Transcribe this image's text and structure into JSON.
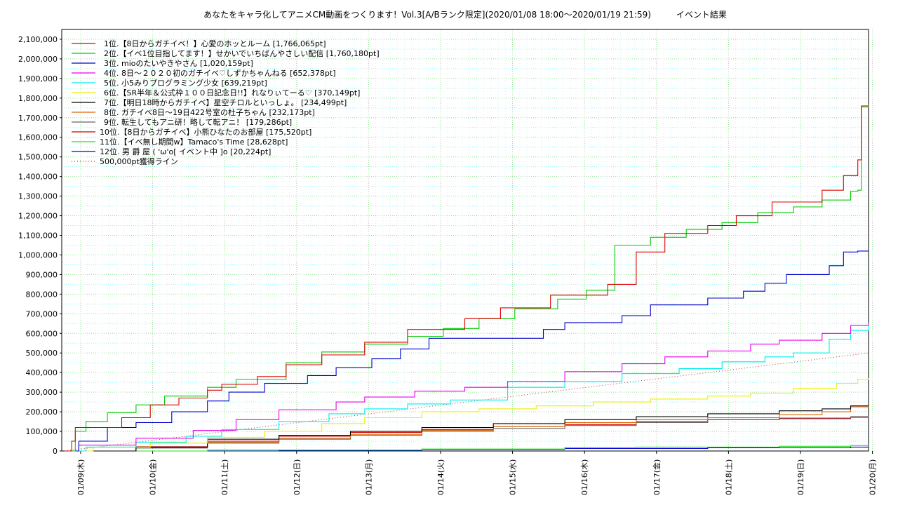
{
  "chart_data": {
    "type": "line",
    "title": "あなたをキャラ化してアニメCM動画をつくります！Vol.3[A/Bランク限定](2020/01/08 18:00～2020/01/19 21:59)　　　イベント結果",
    "ylim": [
      0,
      2150000
    ],
    "xlim_days": [
      0.0,
      11.25
    ],
    "yticks": [
      0,
      100000,
      200000,
      300000,
      400000,
      500000,
      600000,
      700000,
      800000,
      900000,
      1000000,
      1100000,
      1200000,
      1300000,
      1400000,
      1500000,
      1600000,
      1700000,
      1800000,
      1900000,
      2000000,
      2100000
    ],
    "ytick_labels": [
      "0",
      "100,000",
      "200,000",
      "300,000",
      "400,000",
      "500,000",
      "600,000",
      "700,000",
      "800,000",
      "900,000",
      "1,000,000",
      "1,100,000",
      "1,200,000",
      "1,300,000",
      "1,400,000",
      "1,500,000",
      "1,600,000",
      "1,700,000",
      "1,800,000",
      "1,900,000",
      "2,000,000",
      "2,100,000"
    ],
    "xtick_labels": [
      "01/09(木)",
      "01/10(金)",
      "01/11(土)",
      "01/12(日)",
      "01/13(月)",
      "01/14(火)",
      "01/15(水)",
      "01/16(木)",
      "01/17(金)",
      "01/18(土)",
      "01/19(日)",
      "01/20(月)"
    ],
    "grid": true,
    "legend_position": "top-left",
    "series": [
      {
        "name": "1位.【8日からガチイベ！】心愛のホッとルーム [1,766,065pt]",
        "color": "#dd0000",
        "x": [
          0,
          0.1,
          0.15,
          0.8,
          1.2,
          1.6,
          2.0,
          2.2,
          2.7,
          3.1,
          3.6,
          4.2,
          4.8,
          5.6,
          6.1,
          6.8,
          7.6,
          8.0,
          8.4,
          9.0,
          9.4,
          9.9,
          10.6,
          10.9,
          11.1,
          11.15,
          11.25
        ],
        "y": [
          0,
          50000,
          120000,
          170000,
          235000,
          270000,
          310000,
          340000,
          380000,
          440000,
          490000,
          555000,
          620000,
          675000,
          730000,
          795000,
          850000,
          1015000,
          1110000,
          1150000,
          1200000,
          1270000,
          1330000,
          1405000,
          1485000,
          1760000,
          1766065
        ]
      },
      {
        "name": "2位.【イベ1位目指してます！】せかいでいちばんやさしい配信 [1,760,180pt]",
        "color": "#00cc00",
        "x": [
          0,
          0.15,
          0.3,
          0.6,
          1.0,
          1.4,
          2.0,
          2.4,
          3.1,
          3.6,
          4.2,
          4.8,
          5.3,
          5.8,
          6.3,
          6.9,
          7.3,
          7.7,
          8.2,
          8.7,
          9.2,
          9.7,
          10.2,
          10.6,
          11.0,
          11.1,
          11.15,
          11.25
        ],
        "y": [
          0,
          100000,
          150000,
          195000,
          235000,
          280000,
          325000,
          365000,
          450000,
          505000,
          545000,
          585000,
          625000,
          675000,
          725000,
          775000,
          820000,
          1050000,
          1090000,
          1130000,
          1165000,
          1215000,
          1245000,
          1280000,
          1325000,
          1330000,
          1755000,
          1760180
        ]
      },
      {
        "name": "3位. mioのたいやきやさん [1,020,159pt]",
        "color": "#0000cc",
        "x": [
          0,
          0.2,
          0.6,
          1.0,
          1.5,
          2.0,
          2.3,
          2.8,
          3.4,
          3.8,
          4.3,
          4.7,
          5.1,
          5.8,
          6.3,
          6.7,
          7.0,
          7.5,
          7.8,
          8.2,
          8.6,
          9.0,
          9.5,
          9.8,
          10.1,
          10.7,
          10.9,
          11.1,
          11.25
        ],
        "y": [
          0,
          50000,
          120000,
          145000,
          200000,
          255000,
          300000,
          345000,
          385000,
          425000,
          470000,
          520000,
          575000,
          575000,
          575000,
          620000,
          655000,
          655000,
          690000,
          745000,
          745000,
          780000,
          815000,
          855000,
          900000,
          945000,
          1015000,
          1020000,
          1020159
        ]
      },
      {
        "name": "4位. 8日〜２０２０初のガチイベ♡しずかちゃんねる [652,378pt]",
        "color": "#ee00ee",
        "x": [
          0,
          0.2,
          1.0,
          1.8,
          2.4,
          3.0,
          3.8,
          4.2,
          4.9,
          5.6,
          6.2,
          7.0,
          7.8,
          8.4,
          9.0,
          9.6,
          10.0,
          10.6,
          11.0,
          11.25
        ],
        "y": [
          0,
          30000,
          65000,
          105000,
          160000,
          210000,
          250000,
          275000,
          305000,
          325000,
          355000,
          405000,
          445000,
          480000,
          510000,
          545000,
          565000,
          600000,
          640000,
          652378
        ]
      },
      {
        "name": "5位. 小5みりプログラミング少女 [639,219pt]",
        "color": "#00eeee",
        "x": [
          0,
          0.3,
          1.0,
          1.7,
          2.2,
          3.0,
          3.7,
          4.2,
          4.8,
          5.4,
          6.2,
          7.0,
          7.8,
          8.6,
          9.2,
          9.8,
          10.2,
          10.7,
          11.0,
          11.25
        ],
        "y": [
          0,
          20000,
          45000,
          75000,
          110000,
          150000,
          190000,
          215000,
          240000,
          260000,
          325000,
          355000,
          395000,
          420000,
          455000,
          480000,
          500000,
          570000,
          615000,
          639219
        ]
      },
      {
        "name": "6位.【SR半年＆公式枠１００日記念日!!】れなりぃてーる♡ [370,149pt]",
        "color": "#eeee00",
        "x": [
          0,
          0.4,
          1.2,
          2.0,
          2.8,
          3.6,
          4.2,
          5.0,
          5.8,
          6.6,
          7.4,
          8.2,
          9.0,
          9.6,
          10.2,
          10.8,
          11.1,
          11.25
        ],
        "y": [
          0,
          20000,
          40000,
          70000,
          100000,
          140000,
          170000,
          200000,
          215000,
          230000,
          250000,
          265000,
          280000,
          295000,
          320000,
          345000,
          365000,
          370149
        ]
      },
      {
        "name": "7位.【明日18時からガチイベ】星空チロルといっしょ。 [234,499pt]",
        "color": "#000000",
        "x": [
          0,
          1.0,
          2.0,
          3.0,
          4.0,
          5.0,
          6.0,
          7.0,
          8.0,
          9.0,
          10.0,
          10.6,
          11.0,
          11.25
        ],
        "y": [
          0,
          20000,
          60000,
          80000,
          100000,
          120000,
          140000,
          160000,
          175000,
          190000,
          205000,
          215000,
          230000,
          234499
        ]
      },
      {
        "name": "8位. ガチイベ8日〜19日422号室の杜子ちゃん [232,173pt]",
        "color": "#dd6600",
        "x": [
          0,
          1.0,
          2.0,
          3.0,
          4.0,
          5.0,
          6.0,
          7.0,
          8.0,
          9.0,
          10.0,
          10.6,
          11.0,
          11.25
        ],
        "y": [
          0,
          18000,
          45000,
          65000,
          85000,
          105000,
          125000,
          145000,
          160000,
          170000,
          185000,
          200000,
          225000,
          232173
        ]
      },
      {
        "name": "9位. 転生してもアニ研！略して転アニ！ [179,286pt]",
        "color": "#666666",
        "x": [
          0,
          1.0,
          2.0,
          3.0,
          4.0,
          5.0,
          6.0,
          7.0,
          8.0,
          9.0,
          10.0,
          11.0,
          11.25
        ],
        "y": [
          0,
          15000,
          40000,
          60000,
          80000,
          100000,
          115000,
          130000,
          145000,
          160000,
          168000,
          175000,
          179286
        ]
      },
      {
        "name": "10位.【8日からガチイベ】小熊ひなたのお部屋 [175,520pt]",
        "color": "#cc0000",
        "x": [
          0,
          1.0,
          2.0,
          3.0,
          4.0,
          5.0,
          6.0,
          7.0,
          8.0,
          9.0,
          10.0,
          11.0,
          11.25
        ],
        "y": [
          0,
          22000,
          50000,
          75000,
          95000,
          110000,
          125000,
          135000,
          150000,
          160000,
          165000,
          172000,
          175520
        ]
      },
      {
        "name": "11位.【イベ無し期間w】Tamaco's Time [28,628pt]",
        "color": "#22dd22",
        "x": [
          0,
          2.0,
          5.0,
          7.0,
          8.0,
          10.0,
          11.0,
          11.25
        ],
        "y": [
          0,
          5000,
          10000,
          18000,
          20000,
          24000,
          28000,
          28628
        ]
      },
      {
        "name": "12位. 男 爵 屋 ( 'ω'o[ イベント中 ]o [20,224pt]",
        "color": "#0000dd",
        "x": [
          0,
          3.0,
          5.0,
          7.0,
          9.0,
          11.0,
          11.25
        ],
        "y": [
          0,
          3000,
          8000,
          13000,
          16000,
          20000,
          20224
        ]
      }
    ],
    "reference_line": {
      "name": "500,000pt獲得ライン",
      "color": "#cc3333",
      "x": [
        0,
        11.25
      ],
      "y": [
        0,
        500000
      ]
    }
  }
}
